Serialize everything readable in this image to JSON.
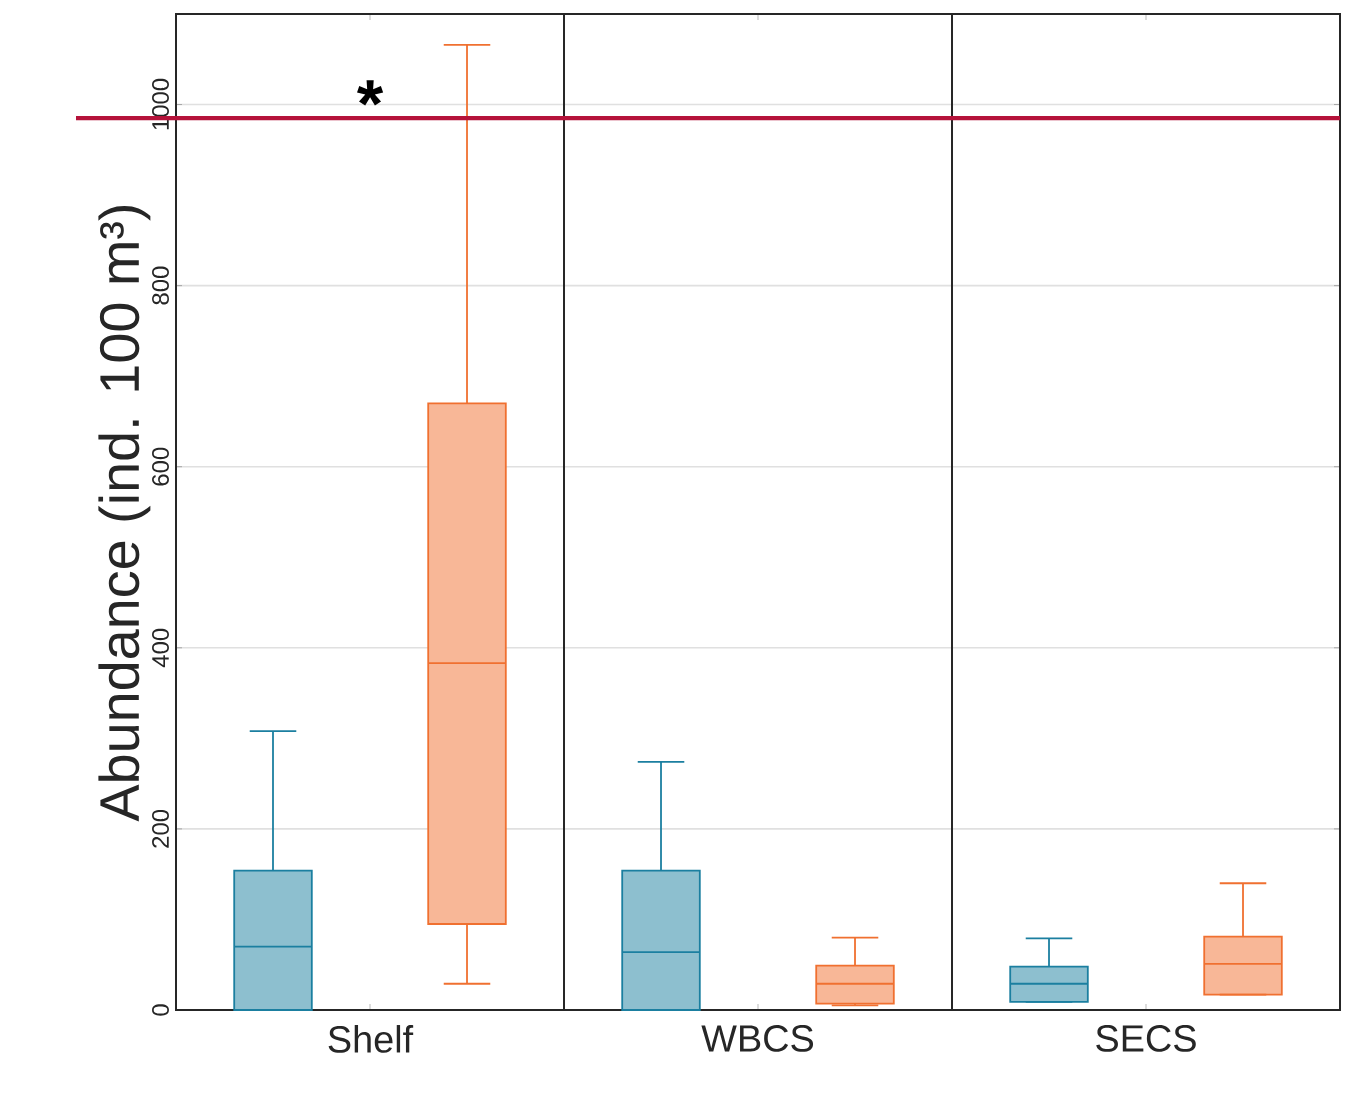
{
  "chart_data": {
    "type": "box",
    "ylabel": "Abundance (ind. 100 m³)",
    "categories": [
      "Shelf",
      "WBCS",
      "SECS"
    ],
    "series": [
      {
        "color": "#1b7fa0",
        "boxes": [
          {
            "low": 0,
            "q1": 0,
            "median": 70,
            "q3": 154,
            "high": 308
          },
          {
            "low": 0,
            "q1": 0,
            "median": 64,
            "q3": 154,
            "high": 274
          },
          {
            "low": 9,
            "q1": 9,
            "median": 29,
            "q3": 48,
            "high": 79
          }
        ]
      },
      {
        "color": "#f07030",
        "boxes": [
          {
            "low": 29,
            "q1": 95,
            "median": 383,
            "q3": 670,
            "high": 1066
          },
          {
            "low": 5,
            "q1": 7,
            "median": 29,
            "q3": 49,
            "high": 80
          },
          {
            "low": 17,
            "q1": 17,
            "median": 51,
            "q3": 81,
            "high": 140
          }
        ]
      }
    ],
    "ylim": [
      0,
      1100
    ],
    "yticks": [
      0,
      200,
      400,
      600,
      800,
      1000
    ],
    "grid": "y",
    "ref_lines": [
      {
        "axis": "y",
        "value": 985,
        "color": "#b5123a"
      }
    ],
    "annotations": [
      "*"
    ]
  }
}
